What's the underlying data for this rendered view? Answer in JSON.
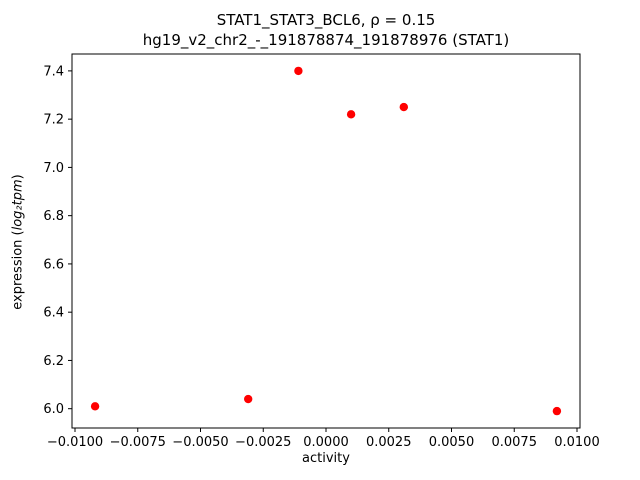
{
  "chart_data": {
    "type": "scatter",
    "title": "STAT1_STAT3_BCL6, ρ = 0.15",
    "subtitle": "hg19_v2_chr2_-_191878874_191878976 (STAT1)",
    "xlabel": "activity",
    "ylabel_prefix": "expression (",
    "ylabel_math": "log₂tpm",
    "ylabel_suffix": ")",
    "marker_color": "#ff0000",
    "axis_color": "#000000",
    "x": [
      -0.0092,
      -0.0031,
      -0.0011,
      0.001,
      0.0031,
      0.0092
    ],
    "y": [
      6.01,
      6.04,
      7.4,
      7.22,
      7.25,
      5.99
    ],
    "xlim": [
      -0.01012,
      0.01012
    ],
    "ylim": [
      5.92,
      7.47
    ],
    "xticks": [
      -0.01,
      -0.0075,
      -0.005,
      -0.0025,
      0.0,
      0.0025,
      0.005,
      0.0075,
      0.01
    ],
    "yticks": [
      6.0,
      6.2,
      6.4,
      6.6,
      6.8,
      7.0,
      7.2,
      7.4
    ],
    "grid": false,
    "legend": "none"
  }
}
